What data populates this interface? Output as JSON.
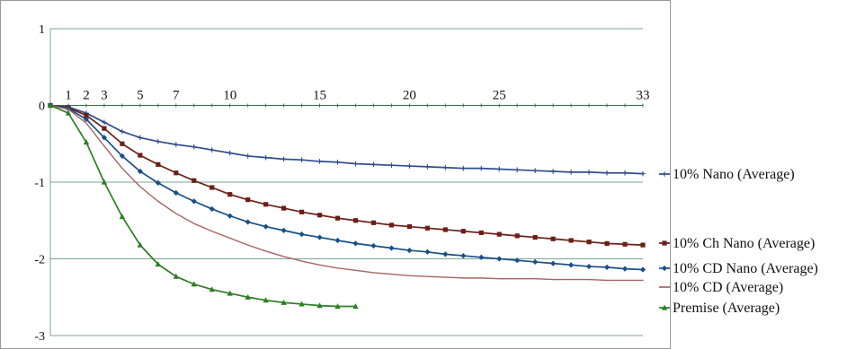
{
  "chart_data": {
    "type": "line",
    "title": "",
    "xlabel": "",
    "ylabel": "",
    "ylim": [
      -3,
      1
    ],
    "y_ticks": [
      1,
      0,
      -1,
      -2,
      -3
    ],
    "x_tick_labels": [
      {
        "x": 1,
        "label": "1"
      },
      {
        "x": 2,
        "label": "2"
      },
      {
        "x": 3,
        "label": "3"
      },
      {
        "x": 5,
        "label": "5"
      },
      {
        "x": 7,
        "label": "7"
      },
      {
        "x": 10,
        "label": "10"
      },
      {
        "x": 15,
        "label": "15"
      },
      {
        "x": 20,
        "label": "20"
      },
      {
        "x": 25,
        "label": "25"
      },
      {
        "x": 33,
        "label": "33"
      }
    ],
    "grid": true,
    "legend_position": "right",
    "series": [
      {
        "name": "10% Nano (Average)",
        "color": "#2F4D8C",
        "marker": "cross",
        "points": [
          [
            0,
            0.0
          ],
          [
            1,
            -0.02
          ],
          [
            2,
            -0.1
          ],
          [
            3,
            -0.22
          ],
          [
            4,
            -0.34
          ],
          [
            5,
            -0.42
          ],
          [
            6,
            -0.47
          ],
          [
            7,
            -0.51
          ],
          [
            8,
            -0.54
          ],
          [
            9,
            -0.58
          ],
          [
            10,
            -0.62
          ],
          [
            11,
            -0.66
          ],
          [
            12,
            -0.68
          ],
          [
            13,
            -0.7
          ],
          [
            14,
            -0.71
          ],
          [
            15,
            -0.73
          ],
          [
            16,
            -0.74
          ],
          [
            17,
            -0.76
          ],
          [
            18,
            -0.77
          ],
          [
            19,
            -0.78
          ],
          [
            20,
            -0.79
          ],
          [
            21,
            -0.8
          ],
          [
            22,
            -0.81
          ],
          [
            23,
            -0.82
          ],
          [
            24,
            -0.82
          ],
          [
            25,
            -0.83
          ],
          [
            26,
            -0.84
          ],
          [
            27,
            -0.85
          ],
          [
            28,
            -0.86
          ],
          [
            29,
            -0.87
          ],
          [
            30,
            -0.87
          ],
          [
            31,
            -0.88
          ],
          [
            32,
            -0.88
          ],
          [
            33,
            -0.89
          ]
        ]
      },
      {
        "name": "10% Ch Nano (Average)",
        "color": "#6B1F17",
        "marker": "square",
        "points": [
          [
            0,
            0.0
          ],
          [
            1,
            -0.03
          ],
          [
            2,
            -0.13
          ],
          [
            3,
            -0.3
          ],
          [
            4,
            -0.5
          ],
          [
            5,
            -0.65
          ],
          [
            6,
            -0.77
          ],
          [
            7,
            -0.88
          ],
          [
            8,
            -0.98
          ],
          [
            9,
            -1.07
          ],
          [
            10,
            -1.16
          ],
          [
            11,
            -1.23
          ],
          [
            12,
            -1.29
          ],
          [
            13,
            -1.34
          ],
          [
            14,
            -1.39
          ],
          [
            15,
            -1.43
          ],
          [
            16,
            -1.47
          ],
          [
            17,
            -1.5
          ],
          [
            18,
            -1.53
          ],
          [
            19,
            -1.56
          ],
          [
            20,
            -1.58
          ],
          [
            21,
            -1.6
          ],
          [
            22,
            -1.62
          ],
          [
            23,
            -1.64
          ],
          [
            24,
            -1.66
          ],
          [
            25,
            -1.68
          ],
          [
            26,
            -1.7
          ],
          [
            27,
            -1.72
          ],
          [
            28,
            -1.74
          ],
          [
            29,
            -1.76
          ],
          [
            30,
            -1.78
          ],
          [
            31,
            -1.8
          ],
          [
            32,
            -1.81
          ],
          [
            33,
            -1.82
          ]
        ]
      },
      {
        "name": "10% CD Nano (Average)",
        "color": "#1A4F86",
        "marker": "diamond",
        "points": [
          [
            0,
            0.0
          ],
          [
            1,
            -0.04
          ],
          [
            2,
            -0.18
          ],
          [
            3,
            -0.42
          ],
          [
            4,
            -0.66
          ],
          [
            5,
            -0.86
          ],
          [
            6,
            -1.01
          ],
          [
            7,
            -1.14
          ],
          [
            8,
            -1.25
          ],
          [
            9,
            -1.35
          ],
          [
            10,
            -1.44
          ],
          [
            11,
            -1.52
          ],
          [
            12,
            -1.58
          ],
          [
            13,
            -1.63
          ],
          [
            14,
            -1.68
          ],
          [
            15,
            -1.72
          ],
          [
            16,
            -1.76
          ],
          [
            17,
            -1.8
          ],
          [
            18,
            -1.83
          ],
          [
            19,
            -1.86
          ],
          [
            20,
            -1.89
          ],
          [
            21,
            -1.91
          ],
          [
            22,
            -1.94
          ],
          [
            23,
            -1.96
          ],
          [
            24,
            -1.98
          ],
          [
            25,
            -2.0
          ],
          [
            26,
            -2.02
          ],
          [
            27,
            -2.04
          ],
          [
            28,
            -2.06
          ],
          [
            29,
            -2.08
          ],
          [
            30,
            -2.1
          ],
          [
            31,
            -2.11
          ],
          [
            32,
            -2.13
          ],
          [
            33,
            -2.14
          ]
        ]
      },
      {
        "name": "10% CD (Average)",
        "color": "#A86460",
        "marker": "none",
        "points": [
          [
            0,
            0.0
          ],
          [
            1,
            -0.05
          ],
          [
            2,
            -0.23
          ],
          [
            3,
            -0.53
          ],
          [
            4,
            -0.82
          ],
          [
            5,
            -1.06
          ],
          [
            6,
            -1.25
          ],
          [
            7,
            -1.41
          ],
          [
            8,
            -1.54
          ],
          [
            9,
            -1.64
          ],
          [
            10,
            -1.73
          ],
          [
            11,
            -1.82
          ],
          [
            12,
            -1.9
          ],
          [
            13,
            -1.97
          ],
          [
            14,
            -2.03
          ],
          [
            15,
            -2.08
          ],
          [
            16,
            -2.12
          ],
          [
            17,
            -2.15
          ],
          [
            18,
            -2.18
          ],
          [
            19,
            -2.2
          ],
          [
            20,
            -2.22
          ],
          [
            21,
            -2.23
          ],
          [
            22,
            -2.24
          ],
          [
            23,
            -2.25
          ],
          [
            24,
            -2.25
          ],
          [
            25,
            -2.26
          ],
          [
            26,
            -2.26
          ],
          [
            27,
            -2.26
          ],
          [
            28,
            -2.27
          ],
          [
            29,
            -2.27
          ],
          [
            30,
            -2.27
          ],
          [
            31,
            -2.28
          ],
          [
            32,
            -2.28
          ],
          [
            33,
            -2.28
          ]
        ]
      },
      {
        "name": "Premise (Average)",
        "color": "#2E7D24",
        "marker": "triangle",
        "points": [
          [
            0,
            0.0
          ],
          [
            1,
            -0.1
          ],
          [
            2,
            -0.48
          ],
          [
            3,
            -1.0
          ],
          [
            4,
            -1.45
          ],
          [
            5,
            -1.82
          ],
          [
            6,
            -2.07
          ],
          [
            7,
            -2.23
          ],
          [
            8,
            -2.33
          ],
          [
            9,
            -2.4
          ],
          [
            10,
            -2.45
          ],
          [
            11,
            -2.5
          ],
          [
            12,
            -2.54
          ],
          [
            13,
            -2.57
          ],
          [
            14,
            -2.59
          ],
          [
            15,
            -2.61
          ],
          [
            16,
            -2.62
          ],
          [
            17,
            -2.62
          ]
        ]
      }
    ]
  }
}
